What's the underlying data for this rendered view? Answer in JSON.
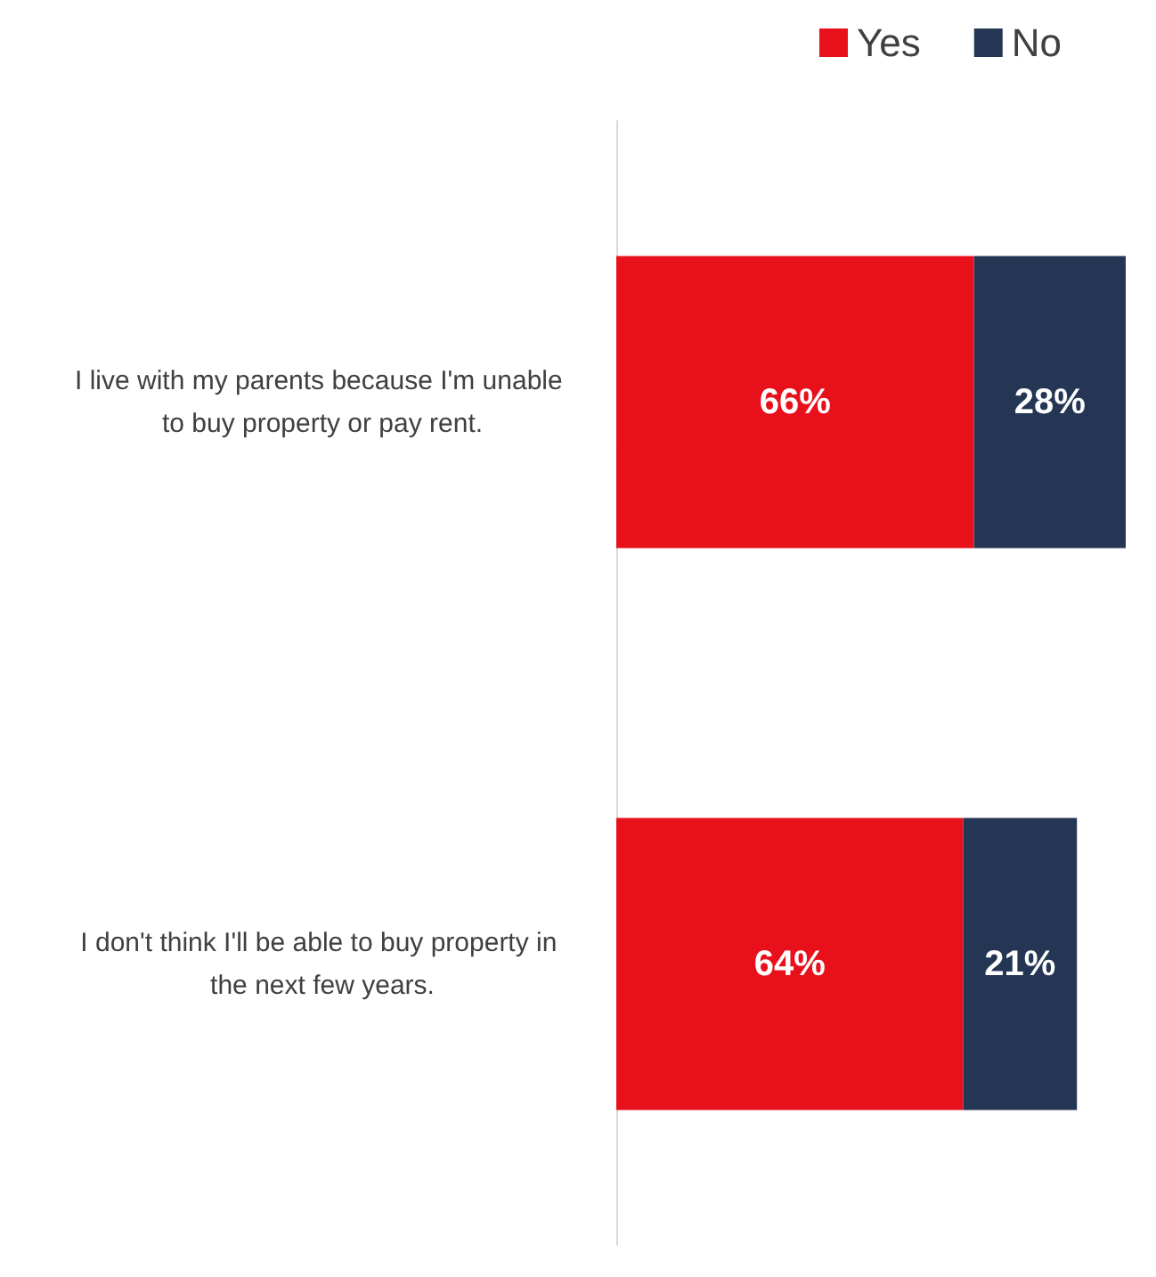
{
  "chart_data": {
    "type": "bar",
    "orientation": "horizontal",
    "stacked": true,
    "legend": "top right",
    "categories": [
      "I live with my parents because I'm unable to buy property or pay rent.",
      "I don't think I'll be able to buy property in the next few years."
    ],
    "series": [
      {
        "name": "Yes",
        "color": "#e8101a",
        "values": [
          66,
          64
        ],
        "value_labels": [
          "66%",
          "64%"
        ]
      },
      {
        "name": "No",
        "color": "#253654",
        "values": [
          28,
          21
        ],
        "value_labels": [
          "28%",
          "21%"
        ]
      }
    ]
  }
}
